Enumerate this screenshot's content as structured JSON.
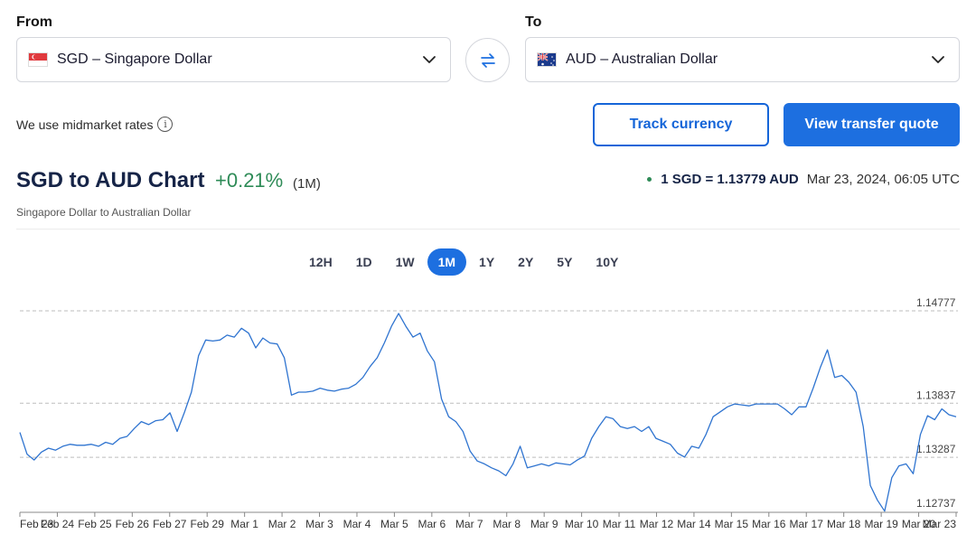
{
  "from": {
    "label": "From",
    "code": "SGD",
    "name": "Singapore Dollar",
    "display": "SGD – Singapore Dollar",
    "flag_icon": "singapore-flag-icon"
  },
  "to": {
    "label": "To",
    "code": "AUD",
    "name": "Australian Dollar",
    "display": "AUD – Australian Dollar",
    "flag_icon": "australia-flag-icon"
  },
  "midmarket_text": "We use midmarket rates",
  "buttons": {
    "track": "Track currency",
    "quote": "View transfer quote"
  },
  "header": {
    "title": "SGD to AUD Chart",
    "change": "+0.21%",
    "period_label": "(1M)",
    "subtitle": "Singapore Dollar to Australian Dollar",
    "rate": "1 SGD = 1.13779 AUD",
    "timestamp": "Mar 23, 2024, 06:05 UTC"
  },
  "periods": [
    "12H",
    "1D",
    "1W",
    "1M",
    "1Y",
    "2Y",
    "5Y",
    "10Y"
  ],
  "active_period": "1M",
  "colors": {
    "accent": "#1d6fe0",
    "positive": "#2e8b57",
    "line": "#2f74d0",
    "title": "#162447"
  },
  "chart_data": {
    "type": "line",
    "title": "",
    "xlabel": "",
    "ylabel": "",
    "ylim": [
      1.12737,
      1.14777
    ],
    "y_ticks": [
      "1.14777",
      "1.13837",
      "1.13287",
      "1.12737"
    ],
    "x_ticks": [
      "Feb 23",
      "Feb 24",
      "Feb 25",
      "Feb 26",
      "Feb 27",
      "Feb 29",
      "Mar 1",
      "Mar 2",
      "Mar 3",
      "Mar 4",
      "Mar 5",
      "Mar 6",
      "Mar 7",
      "Mar 8",
      "Mar 9",
      "Mar 10",
      "Mar 11",
      "Mar 12",
      "Mar 14",
      "Mar 15",
      "Mar 16",
      "Mar 17",
      "Mar 18",
      "Mar 19",
      "Mar 20",
      "Mar 23"
    ],
    "grid": "horizontal dashed",
    "series": [
      {
        "values": [
          1.1354,
          1.1332,
          1.1326,
          1.1334,
          1.1338,
          1.1336,
          1.134,
          1.1342,
          1.1341,
          1.1341,
          1.1342,
          1.134,
          1.1344,
          1.1342,
          1.1348,
          1.135,
          1.1358,
          1.1365,
          1.1362,
          1.1366,
          1.1367,
          1.1374,
          1.1355,
          1.1374,
          1.1395,
          1.1432,
          1.1448,
          1.1447,
          1.1448,
          1.1453,
          1.1451,
          1.146,
          1.1455,
          1.144,
          1.145,
          1.1445,
          1.1444,
          1.143,
          1.1392,
          1.1395,
          1.1395,
          1.1396,
          1.1399,
          1.1397,
          1.1396,
          1.1398,
          1.1399,
          1.1403,
          1.141,
          1.1421,
          1.143,
          1.1445,
          1.1462,
          1.1475,
          1.1462,
          1.1451,
          1.1455,
          1.1437,
          1.1426,
          1.1388,
          1.137,
          1.1365,
          1.1355,
          1.1335,
          1.1325,
          1.1322,
          1.1318,
          1.1315,
          1.131,
          1.1322,
          1.134,
          1.1318,
          1.132,
          1.1322,
          1.132,
          1.1323,
          1.1322,
          1.1321,
          1.1326,
          1.133,
          1.1348,
          1.136,
          1.137,
          1.1368,
          1.136,
          1.1358,
          1.136,
          1.1355,
          1.136,
          1.1348,
          1.1345,
          1.1342,
          1.1333,
          1.1329,
          1.134,
          1.1338,
          1.1352,
          1.137,
          1.1375,
          1.138,
          1.1383,
          1.1382,
          1.1381,
          1.1383,
          1.1383,
          1.1383,
          1.1383,
          1.1378,
          1.1372,
          1.138,
          1.138,
          1.1399,
          1.142,
          1.1438,
          1.141,
          1.1412,
          1.1405,
          1.1395,
          1.136,
          1.13,
          1.1285,
          1.1274,
          1.1308,
          1.132,
          1.1322,
          1.1312,
          1.1352,
          1.1371,
          1.1367,
          1.1378,
          1.1372,
          1.137
        ]
      }
    ]
  }
}
